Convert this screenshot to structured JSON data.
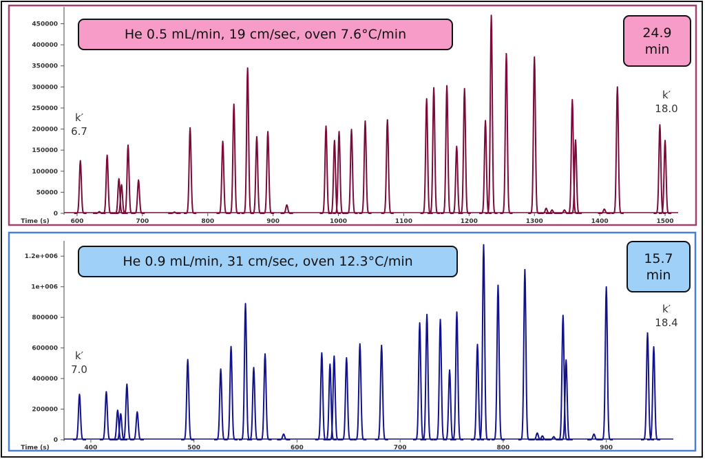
{
  "chart_data": [
    {
      "type": "line",
      "color": "#7a0a3a",
      "panel_border": "#a0406e",
      "box_color": "#f79cc8",
      "condition_label": "He 0.5 mL/min, 19 cm/sec, oven 7.6°C/min",
      "run_time": {
        "value": "24.9",
        "unit": "min"
      },
      "k_start": {
        "label": "k′",
        "value": "6.7"
      },
      "k_end": {
        "label": "k′",
        "value": "18.0"
      },
      "xlabel": "Time (s)",
      "ylabel": "",
      "xlim": [
        580,
        1520
      ],
      "ylim": [
        0,
        490000
      ],
      "xticks": [
        600,
        700,
        800,
        900,
        1000,
        1100,
        1200,
        1300,
        1400,
        1500
      ],
      "yticks": [
        "0",
        "50000",
        "100000",
        "150000",
        "200000",
        "250000",
        "300000",
        "350000",
        "400000",
        "450000"
      ],
      "ytick_values": [
        0,
        50000,
        100000,
        150000,
        200000,
        250000,
        300000,
        350000,
        400000,
        450000
      ],
      "grid": false,
      "peaks": {
        "x": [
          605,
          634,
          646,
          664,
          668,
          678,
          694,
          749,
          773,
          823,
          840,
          861,
          875,
          892,
          921,
          981,
          994,
          1001,
          1020,
          1041,
          1075,
          1135,
          1146,
          1166,
          1181,
          1193,
          1225,
          1234,
          1257,
          1300,
          1318,
          1327,
          1346,
          1358,
          1363,
          1407,
          1427,
          1492,
          1500
        ],
        "y": [
          125000,
          4000,
          138000,
          82000,
          68000,
          162000,
          79000,
          3000,
          203000,
          171000,
          259000,
          345000,
          182000,
          194000,
          20000,
          207000,
          173000,
          194000,
          199000,
          219000,
          222000,
          272000,
          298000,
          303000,
          159000,
          296000,
          220000,
          470000,
          379000,
          371000,
          12000,
          8000,
          8000,
          270000,
          174000,
          10000,
          300000,
          210000,
          173000
        ]
      }
    },
    {
      "type": "line",
      "color": "#12128c",
      "panel_border": "#4a7fd0",
      "box_color": "#9fd0f7",
      "condition_label": "He 0.9 mL/min, 31 cm/sec, oven 12.3°C/min",
      "run_time": {
        "value": "15.7",
        "unit": "min"
      },
      "k_start": {
        "label": "k′",
        "value": "7.0"
      },
      "k_end": {
        "label": "k′",
        "value": "18.4"
      },
      "xlabel": "Time (s)",
      "ylabel": "",
      "xlim": [
        374,
        965
      ],
      "ylim": [
        0,
        1300000
      ],
      "xticks": [
        400,
        500,
        600,
        700,
        800,
        900
      ],
      "yticks": [
        "0",
        "200000",
        "400000",
        "600000",
        "800000",
        "1e+006",
        "1.2e+006"
      ],
      "ytick_values": [
        0,
        200000,
        400000,
        600000,
        800000,
        1000000,
        1200000
      ],
      "grid": false,
      "peaks": {
        "x": [
          389,
          415,
          426,
          429,
          435,
          445,
          494,
          526,
          536,
          550,
          558,
          569,
          587,
          624,
          632,
          636,
          648,
          661,
          682,
          719,
          726,
          739,
          748,
          755,
          775,
          781,
          795,
          821,
          833,
          838,
          849,
          858,
          861,
          888,
          900,
          940,
          946
        ],
        "y": [
          297000,
          314000,
          193000,
          170000,
          363000,
          182000,
          524000,
          462000,
          609000,
          890000,
          472000,
          561000,
          37000,
          568000,
          494000,
          547000,
          536000,
          627000,
          617000,
          764000,
          819000,
          786000,
          456000,
          835000,
          623000,
          1274000,
          1010000,
          1112000,
          44000,
          25000,
          20000,
          813000,
          521000,
          37000,
          999000,
          698000,
          607000
        ]
      }
    }
  ]
}
